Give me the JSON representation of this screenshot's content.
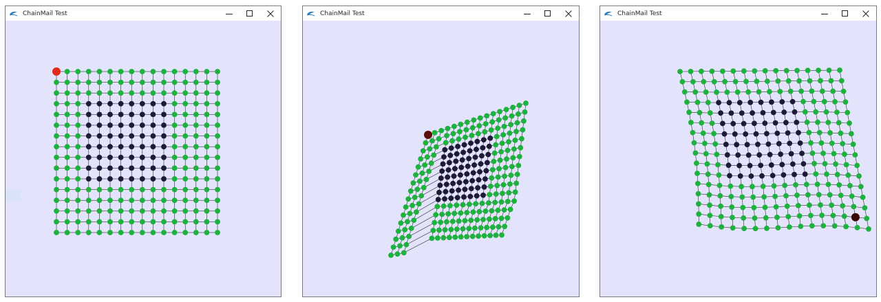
{
  "windows": [
    {
      "title": "ChainMail Test",
      "controls": [
        "minimize-icon",
        "maximize-icon",
        "close-icon"
      ]
    },
    {
      "title": "ChainMail Test",
      "controls": [
        "minimize-icon",
        "maximize-icon",
        "close-icon"
      ]
    },
    {
      "title": "ChainMail Test",
      "controls": [
        "minimize-icon",
        "maximize-icon",
        "close-icon"
      ]
    }
  ],
  "mesh": {
    "columns": 16,
    "rows": 16
  },
  "colors": {
    "client_background": "#e3e3fb",
    "edge_node": "#1db13d",
    "inner_node": "#1e1936",
    "selected_node_state1": "#e02a1e",
    "selected_node_state2": "#5a1008",
    "selected_node_state3": "#3a0a06",
    "link": "#1e1e1e"
  }
}
